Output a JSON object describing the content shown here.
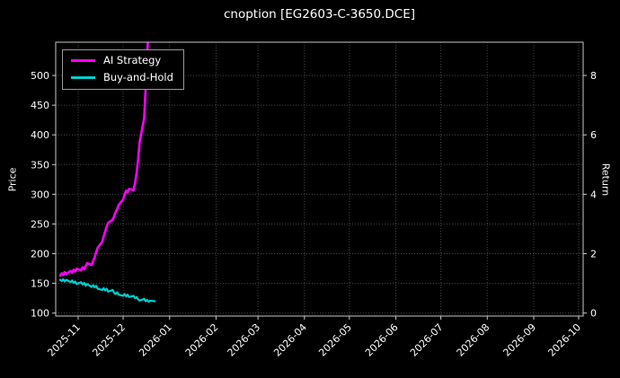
{
  "chart_data": {
    "type": "line",
    "title": "cnoption [EG2603-C-3650.DCE]",
    "ylabel_left": "Price",
    "ylabel_right": "Return",
    "grid": true,
    "legend_position": "upper-left",
    "x_domain": [
      "2025-10-17",
      "2026-10-04"
    ],
    "y_domain_price": [
      95,
      556
    ],
    "colors": {
      "background": "#000000",
      "text": "#ffffff",
      "grid": "#474747",
      "spine": "#c8c8c8",
      "ai_strategy": "#ff00ff",
      "buy_and_hold": "#00d0d0"
    },
    "x_ticks": [
      {
        "label": "2025-11",
        "date": "2025-11-01"
      },
      {
        "label": "2025-12",
        "date": "2025-12-01"
      },
      {
        "label": "2026-01",
        "date": "2026-01-01"
      },
      {
        "label": "2026-02",
        "date": "2026-02-01"
      },
      {
        "label": "2026-03",
        "date": "2026-03-01"
      },
      {
        "label": "2026-04",
        "date": "2026-04-01"
      },
      {
        "label": "2026-05",
        "date": "2026-05-01"
      },
      {
        "label": "2026-06",
        "date": "2026-06-01"
      },
      {
        "label": "2026-07",
        "date": "2026-07-01"
      },
      {
        "label": "2026-08",
        "date": "2026-08-01"
      },
      {
        "label": "2026-09",
        "date": "2026-09-01"
      },
      {
        "label": "2026-10",
        "date": "2026-10-01"
      }
    ],
    "y_ticks_left": [
      {
        "label": "100",
        "price": 100
      },
      {
        "label": "150",
        "price": 150
      },
      {
        "label": "200",
        "price": 200
      },
      {
        "label": "250",
        "price": 250
      },
      {
        "label": "300",
        "price": 300
      },
      {
        "label": "350",
        "price": 350
      },
      {
        "label": "400",
        "price": 400
      },
      {
        "label": "450",
        "price": 450
      },
      {
        "label": "500",
        "price": 500
      }
    ],
    "y_ticks_right": [
      {
        "label": "0",
        "price": 100
      },
      {
        "label": "2",
        "price": 200
      },
      {
        "label": "4",
        "price": 300
      },
      {
        "label": "6",
        "price": 400
      },
      {
        "label": "8",
        "price": 500
      }
    ],
    "series": [
      {
        "name": "AI Strategy",
        "color": "#ff00ff",
        "linewidth": 2.6,
        "data": [
          [
            "2025-10-20",
            163
          ],
          [
            "2025-10-21",
            167
          ],
          [
            "2025-10-22",
            164
          ],
          [
            "2025-10-23",
            169
          ],
          [
            "2025-10-24",
            166
          ],
          [
            "2025-10-27",
            171
          ],
          [
            "2025-10-28",
            168
          ],
          [
            "2025-10-29",
            173
          ],
          [
            "2025-10-30",
            170
          ],
          [
            "2025-10-31",
            175
          ],
          [
            "2025-11-03",
            172
          ],
          [
            "2025-11-04",
            177
          ],
          [
            "2025-11-05",
            174
          ],
          [
            "2025-11-06",
            179
          ],
          [
            "2025-11-07",
            184
          ],
          [
            "2025-11-10",
            181
          ],
          [
            "2025-11-11",
            188
          ],
          [
            "2025-11-12",
            194
          ],
          [
            "2025-11-13",
            202
          ],
          [
            "2025-11-14",
            210
          ],
          [
            "2025-11-17",
            220
          ],
          [
            "2025-11-18",
            229
          ],
          [
            "2025-11-19",
            237
          ],
          [
            "2025-11-20",
            246
          ],
          [
            "2025-11-21",
            252
          ],
          [
            "2025-11-24",
            257
          ],
          [
            "2025-11-25",
            263
          ],
          [
            "2025-11-26",
            270
          ],
          [
            "2025-11-27",
            275
          ],
          [
            "2025-11-28",
            282
          ],
          [
            "2025-12-01",
            291
          ],
          [
            "2025-12-02",
            300
          ],
          [
            "2025-12-03",
            306
          ],
          [
            "2025-12-04",
            303
          ],
          [
            "2025-12-05",
            309
          ],
          [
            "2025-12-08",
            307
          ],
          [
            "2025-12-09",
            320
          ],
          [
            "2025-12-10",
            337
          ],
          [
            "2025-12-11",
            358
          ],
          [
            "2025-12-12",
            388
          ],
          [
            "2025-12-15",
            428
          ],
          [
            "2025-12-16",
            478
          ],
          [
            "2025-12-17",
            535
          ],
          [
            "2025-12-18",
            575
          ]
        ]
      },
      {
        "name": "Buy-and-Hold",
        "color": "#00d0d0",
        "linewidth": 2.2,
        "data": [
          [
            "2025-10-20",
            156
          ],
          [
            "2025-10-21",
            154
          ],
          [
            "2025-10-22",
            157
          ],
          [
            "2025-10-23",
            153
          ],
          [
            "2025-10-24",
            156
          ],
          [
            "2025-10-27",
            152
          ],
          [
            "2025-10-28",
            155
          ],
          [
            "2025-10-29",
            151
          ],
          [
            "2025-10-30",
            153
          ],
          [
            "2025-10-31",
            149
          ],
          [
            "2025-11-03",
            152
          ],
          [
            "2025-11-04",
            148
          ],
          [
            "2025-11-05",
            151
          ],
          [
            "2025-11-06",
            146
          ],
          [
            "2025-11-07",
            149
          ],
          [
            "2025-11-10",
            144
          ],
          [
            "2025-11-11",
            147
          ],
          [
            "2025-11-12",
            143
          ],
          [
            "2025-11-13",
            146
          ],
          [
            "2025-11-14",
            141
          ],
          [
            "2025-11-17",
            139
          ],
          [
            "2025-11-18",
            142
          ],
          [
            "2025-11-19",
            138
          ],
          [
            "2025-11-20",
            141
          ],
          [
            "2025-11-21",
            136
          ],
          [
            "2025-11-24",
            139
          ],
          [
            "2025-11-25",
            134
          ],
          [
            "2025-11-26",
            132
          ],
          [
            "2025-11-27",
            135
          ],
          [
            "2025-11-28",
            131
          ],
          [
            "2025-12-01",
            129
          ],
          [
            "2025-12-02",
            132
          ],
          [
            "2025-12-03",
            128
          ],
          [
            "2025-12-04",
            131
          ],
          [
            "2025-12-05",
            127
          ],
          [
            "2025-12-08",
            129
          ],
          [
            "2025-12-09",
            125
          ],
          [
            "2025-12-10",
            127
          ],
          [
            "2025-12-11",
            123
          ],
          [
            "2025-12-12",
            121
          ],
          [
            "2025-12-15",
            124
          ],
          [
            "2025-12-16",
            120
          ],
          [
            "2025-12-17",
            122
          ],
          [
            "2025-12-18",
            119
          ],
          [
            "2025-12-19",
            121
          ],
          [
            "2025-12-22",
            120
          ]
        ]
      }
    ]
  }
}
